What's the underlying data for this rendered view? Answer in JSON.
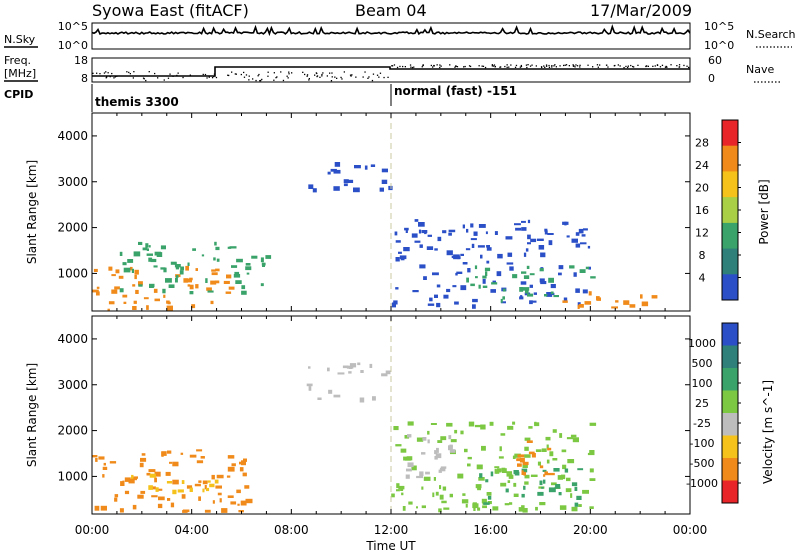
{
  "header": {
    "title_left": "Syowa East (fitACF)",
    "title_center": "Beam 04",
    "title_right": "17/Mar/2009"
  },
  "colors": {
    "echo_blue": "#2b4fc7",
    "echo_green": "#3aa36a",
    "echo_orange": "#f08a1a",
    "echo_red": "#e8262a",
    "echo_grey": "#bdbdbd",
    "boundary_line": "#c8c8a0"
  },
  "strips": {
    "nsky": {
      "label": "N.Sky",
      "ticks_left": [
        "10^5",
        "10^0"
      ],
      "ticks_right": [
        "10^5",
        "10^0"
      ],
      "label_right": "N.Search"
    },
    "freq": {
      "label_line1": "Freq.",
      "label_line2": "[MHz]",
      "ticks_left": [
        "18",
        "8"
      ],
      "ticks_right": [
        "60",
        "0"
      ],
      "label_right": "Nave"
    },
    "cpid": {
      "label": "CPID",
      "segments": [
        {
          "text": "themis 3300",
          "start_hour": 0
        },
        {
          "text": "normal (fast) -151",
          "start_hour": 12
        }
      ]
    }
  },
  "chart_data": [
    {
      "type": "heatmap",
      "panel": "power",
      "ylabel": "Slant Range [km]",
      "xlabel": "",
      "x_range_hours": [
        0,
        24
      ],
      "ylim": [
        180,
        4500
      ],
      "yticks": [
        1000,
        2000,
        3000,
        4000
      ],
      "colorbar": {
        "label": "Power [dB]",
        "ticks": [
          "28",
          "24",
          "20",
          "16",
          "12",
          "8",
          "4"
        ],
        "colors": [
          "#e8262a",
          "#f08a1a",
          "#f4c21a",
          "#a8cf45",
          "#3aa36a",
          "#2f7f7a",
          "#2b4fc7"
        ]
      },
      "echo_regions": [
        {
          "t0": 0.0,
          "t1": 5.5,
          "r0": 200,
          "r1": 1200,
          "color": "#f08a1a"
        },
        {
          "t0": 1.0,
          "t1": 7.0,
          "r0": 600,
          "r1": 1700,
          "color": "#3aa36a"
        },
        {
          "t0": 8.5,
          "t1": 11.9,
          "r0": 2800,
          "r1": 3500,
          "color": "#2b4fc7"
        },
        {
          "t0": 12.0,
          "t1": 20.0,
          "r0": 300,
          "r1": 2200,
          "color": "#2b4fc7"
        },
        {
          "t0": 15.0,
          "t1": 20.0,
          "r0": 400,
          "r1": 1200,
          "color": "#3aa36a"
        },
        {
          "t0": 18.5,
          "t1": 22.5,
          "r0": 200,
          "r1": 700,
          "color": "#f08a1a"
        }
      ]
    },
    {
      "type": "heatmap",
      "panel": "velocity",
      "ylabel": "Slant Range [km]",
      "xlabel": "Time UT",
      "x_range_hours": [
        0,
        24
      ],
      "xticks": [
        "00:00",
        "04:00",
        "08:00",
        "12:00",
        "16:00",
        "20:00",
        "00:00"
      ],
      "ylim": [
        180,
        4500
      ],
      "yticks": [
        1000,
        2000,
        3000,
        4000
      ],
      "colorbar": {
        "label": "Velocity [m s^-1]",
        "ticks": [
          "1000",
          "500",
          "100",
          "25",
          "-25",
          "-100",
          "-500",
          "-1000"
        ],
        "colors": [
          "#2b4fc7",
          "#2f7f7a",
          "#3aa36a",
          "#7cc843",
          "#bdbdbd",
          "#f4c21a",
          "#f08a1a",
          "#e8262a"
        ]
      },
      "echo_regions": [
        {
          "t0": 0.0,
          "t1": 6.2,
          "r0": 250,
          "r1": 1600,
          "color": "#f08a1a"
        },
        {
          "t0": 1.5,
          "t1": 5.0,
          "r0": 700,
          "r1": 1100,
          "color": "#f4c21a"
        },
        {
          "t0": 8.5,
          "t1": 11.9,
          "r0": 2700,
          "r1": 3500,
          "color": "#bdbdbd"
        },
        {
          "t0": 12.0,
          "t1": 20.0,
          "r0": 300,
          "r1": 2200,
          "color": "#7cc843"
        },
        {
          "t0": 12.5,
          "t1": 14.5,
          "r0": 1000,
          "r1": 2000,
          "color": "#bdbdbd"
        },
        {
          "t0": 15.0,
          "t1": 19.5,
          "r0": 400,
          "r1": 1200,
          "color": "#3aa36a"
        },
        {
          "t0": 17.0,
          "t1": 18.5,
          "r0": 1000,
          "r1": 1800,
          "color": "#f08a1a"
        }
      ]
    }
  ]
}
